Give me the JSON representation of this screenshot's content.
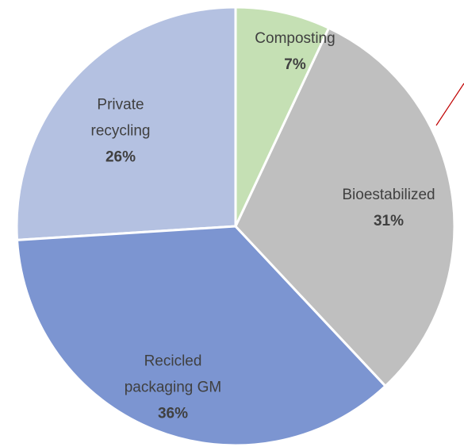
{
  "chart_data": {
    "type": "pie",
    "categories": [
      "Composting",
      "Bioestabilized",
      "Recicled packaging GM",
      "Private recycling"
    ],
    "values": [
      7,
      31,
      36,
      26
    ],
    "value_labels": [
      "7%",
      "31%",
      "36%",
      "26%"
    ],
    "colors": [
      "#c5e0b4",
      "#bfbfbf",
      "#7c95d1",
      "#b4c1e1"
    ]
  }
}
